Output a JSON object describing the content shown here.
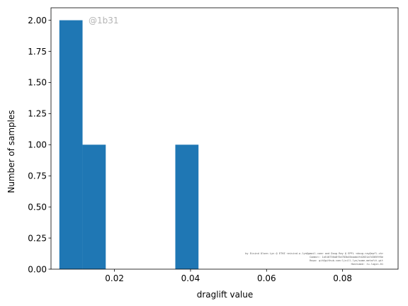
{
  "chart_data": {
    "type": "bar",
    "bins": [
      {
        "x0": 0.0055,
        "x1": 0.0116,
        "count": 2
      },
      {
        "x0": 0.0116,
        "x1": 0.0177,
        "count": 1
      },
      {
        "x0": 0.0177,
        "x1": 0.0238,
        "count": 0
      },
      {
        "x0": 0.0238,
        "x1": 0.0299,
        "count": 0
      },
      {
        "x0": 0.0299,
        "x1": 0.036,
        "count": 0
      },
      {
        "x0": 0.036,
        "x1": 0.0421,
        "count": 1
      }
    ],
    "xlabel": "draglift value",
    "ylabel": "Number of samples",
    "xlim": [
      0.0033,
      0.0946
    ],
    "ylim": [
      0,
      2.1
    ],
    "xticks": [
      0.02,
      0.04,
      0.06,
      0.08
    ],
    "xtick_labels": [
      "0.02",
      "0.04",
      "0.06",
      "0.08"
    ],
    "yticks": [
      0,
      0.25,
      0.5,
      0.75,
      1.0,
      1.25,
      1.5,
      1.75,
      2.0
    ],
    "ytick_labels": [
      "0.00",
      "0.25",
      "0.50",
      "0.75",
      "1.00",
      "1.25",
      "1.50",
      "1.75",
      "2.00"
    ],
    "grid": false,
    "colors": {
      "bar": "#1f77b4",
      "watermark": "#b4b4b4"
    },
    "watermark": "@1b31",
    "credits": [
      "by Eivind Olsen Lyn @ ETHZ <eivind.o.lyn@gmail.com> and Doug Ray @ EPFL <doug.ray@epfl.ch>",
      "Commit: 1a518736a8f3d783b45baab4fd2031a7d3059f8e",
      "Repo: git@github.com:ljvill.lyn/some-metafit.git",
      "Hostname: ru.login.01"
    ]
  }
}
